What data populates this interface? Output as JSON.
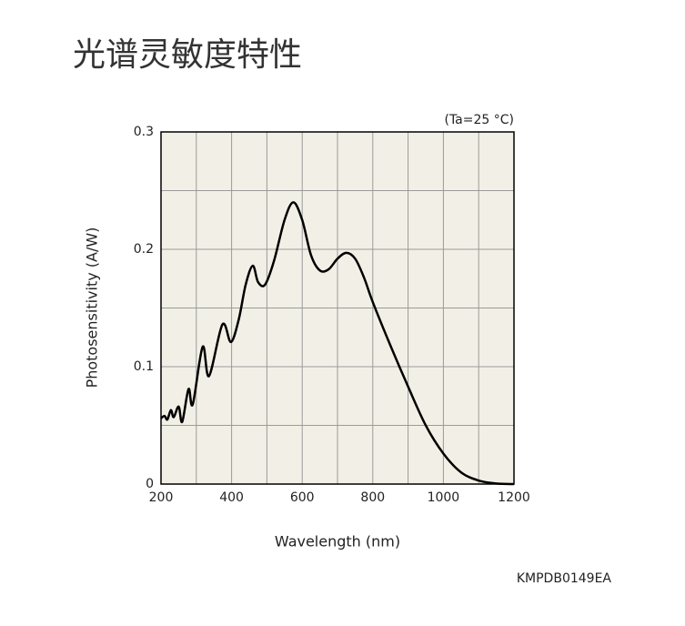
{
  "chart_data": {
    "type": "line",
    "title": "光谱灵敏度特性",
    "annotation": "(Ta=25 °C)",
    "x_label": "Wavelength (nm)",
    "y_label": "Photosensitivity (A/W)",
    "footnote": "KMPDB0149EA",
    "xlim": [
      200,
      1200
    ],
    "ylim": [
      0,
      0.3
    ],
    "xticks": [
      200,
      400,
      600,
      800,
      1000,
      1200
    ],
    "yticks": [
      0,
      0.1,
      0.2,
      0.3
    ],
    "x_minor_ticks": [
      300,
      500,
      700,
      900,
      1100
    ],
    "y_minor_ticks": [
      0.05,
      0.15,
      0.25
    ],
    "grid": true,
    "plot_background": "#f2f0e6",
    "series": [
      {
        "color": "#000000",
        "x": [
          200,
          210,
          218,
          228,
          236,
          250,
          260,
          278,
          290,
          318,
          336,
          374,
          398,
          420,
          440,
          460,
          475,
          495,
          520,
          550,
          575,
          600,
          625,
          650,
          675,
          700,
          725,
          750,
          775,
          800,
          850,
          900,
          950,
          1000,
          1050,
          1100,
          1150,
          1200
        ],
        "values": [
          0.056,
          0.058,
          0.055,
          0.063,
          0.057,
          0.066,
          0.053,
          0.081,
          0.068,
          0.117,
          0.092,
          0.136,
          0.121,
          0.14,
          0.17,
          0.186,
          0.172,
          0.17,
          0.19,
          0.225,
          0.24,
          0.225,
          0.195,
          0.182,
          0.183,
          0.192,
          0.197,
          0.192,
          0.176,
          0.155,
          0.118,
          0.083,
          0.05,
          0.026,
          0.01,
          0.003,
          0.0005,
          0
        ]
      }
    ]
  }
}
